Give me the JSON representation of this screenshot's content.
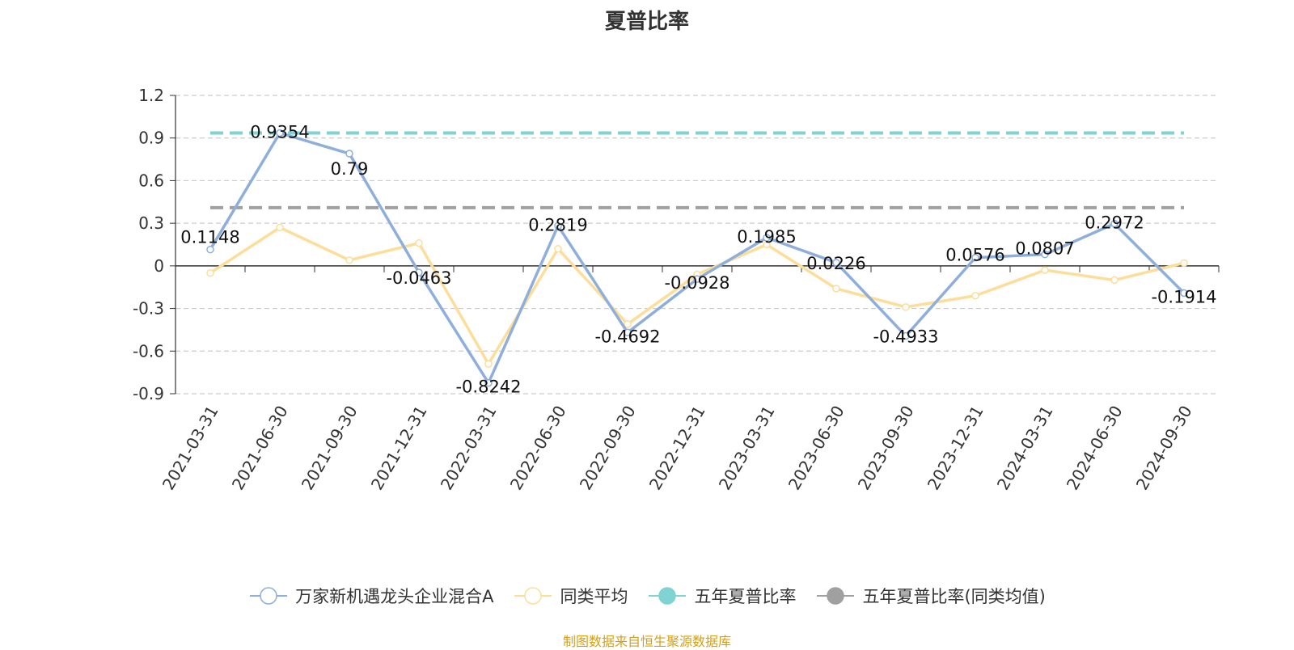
{
  "chart_data": {
    "type": "line",
    "title": "夏普比率",
    "categories": [
      "2021-03-31",
      "2021-06-30",
      "2021-09-30",
      "2021-12-31",
      "2022-03-31",
      "2022-06-30",
      "2022-09-30",
      "2022-12-31",
      "2023-03-31",
      "2023-06-30",
      "2023-09-30",
      "2023-12-31",
      "2024-03-31",
      "2024-06-30",
      "2024-09-30"
    ],
    "ylim": [
      -0.9,
      1.2
    ],
    "yticks": [
      "1.2",
      "0.9",
      "0.6",
      "0.3",
      "0",
      "-0.3",
      "-0.6",
      "-0.9"
    ],
    "grid": true,
    "legend_position": "bottom",
    "series": [
      {
        "name": "万家新机遇龙头企业混合A",
        "color": "#8eaedb",
        "values": [
          0.1148,
          0.9354,
          0.79,
          -0.0463,
          -0.8242,
          0.2819,
          -0.4692,
          -0.0928,
          0.1985,
          0.0226,
          -0.4933,
          0.0576,
          0.0807,
          0.2972,
          -0.1914
        ],
        "labels": [
          "0.1148",
          "0.9354",
          "0.79",
          "-0.0463",
          "-0.8242",
          "0.2819",
          "-0.4692",
          "-0.0928",
          "0.1985",
          "0.0226",
          "-0.4933",
          "0.0576",
          "0.0807",
          "0.2972",
          "-0.1914"
        ]
      },
      {
        "name": "同类平均",
        "color": "#fddd9a",
        "values": [
          -0.05,
          0.27,
          0.04,
          0.16,
          -0.69,
          0.12,
          -0.41,
          -0.06,
          0.15,
          -0.16,
          -0.29,
          -0.21,
          -0.03,
          -0.1,
          0.02
        ]
      }
    ],
    "reference_lines": [
      {
        "name": "五年夏普比率",
        "color": "#7fd3d3",
        "value": 0.9354
      },
      {
        "name": "五年夏普比率(同类均值)",
        "color": "#a0a0a0",
        "value": 0.41
      }
    ]
  },
  "legend": [
    {
      "label": "万家新机遇龙头企业混合A",
      "color": "#8eaedb",
      "style": "hollow"
    },
    {
      "label": "同类平均",
      "color": "#fddd9a",
      "style": "hollow"
    },
    {
      "label": "五年夏普比率",
      "color": "#7fd3d3",
      "style": "filled"
    },
    {
      "label": "五年夏普比率(同类均值)",
      "color": "#a0a0a0",
      "style": "filled"
    }
  ],
  "source_note": "制图数据来自恒生聚源数据库"
}
